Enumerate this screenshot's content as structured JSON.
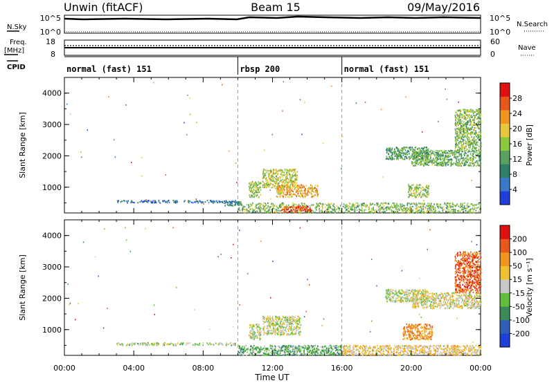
{
  "header": {
    "title_left": "Unwin (fitACF)",
    "title_center": "Beam 15",
    "title_right": "09/May/2016"
  },
  "nsky": {
    "label": "N.Sky",
    "tick_top": "10^5",
    "tick_bottom": "10^0",
    "right_label": "N.Search",
    "right_tick_top": "10^5",
    "right_tick_bottom": "10^0"
  },
  "freq": {
    "label_top": "Freq.",
    "label_bottom": "[MHz]",
    "tick_top": "18",
    "tick_bottom": "8",
    "right_label": "Nave",
    "right_tick_top": "60",
    "right_tick_bottom": "0"
  },
  "cpid": {
    "label": "CPID",
    "segments": [
      {
        "label": "normal (fast) 151",
        "start_hour": 0
      },
      {
        "label": "rbsp 200",
        "start_hour": 10
      },
      {
        "label": "normal (fast) 151",
        "start_hour": 16
      }
    ]
  },
  "colors": {
    "power_scale": [
      "#1f3fd8",
      "#3a78c8",
      "#2f7f6a",
      "#5aa060",
      "#8cc63e",
      "#e8c83a",
      "#f0961e",
      "#e8581a",
      "#e01010"
    ],
    "velocity_scale": [
      "#1f3fd8",
      "#2f5fb8",
      "#3a8a5a",
      "#5fbf3a",
      "#c8c8c8",
      "#f0c030",
      "#f0961e",
      "#e8581a",
      "#e01010"
    ],
    "cpid_change_line": "#888888"
  },
  "chart_data": [
    {
      "type": "heatmap",
      "panel": "power",
      "ylabel": "Slant Range [km]",
      "xlabel": "",
      "x_ticks": [
        "00:00",
        "04:00",
        "08:00",
        "12:00",
        "16:00",
        "20:00",
        "00:00"
      ],
      "x_range_hours": [
        0,
        24
      ],
      "ylim": [
        180,
        4500
      ],
      "y_ticks": [
        1000,
        2000,
        3000,
        4000
      ],
      "colorbar": {
        "label": "Power [dB]",
        "range": [
          0,
          32
        ],
        "ticks": [
          4,
          8,
          12,
          16,
          20,
          24,
          28
        ]
      },
      "echo_regions": [
        {
          "t0": 3.0,
          "t1": 10.0,
          "r0": 520,
          "r1": 600,
          "level": 0.15
        },
        {
          "t0": 9.2,
          "t1": 10.2,
          "r0": 430,
          "r1": 560,
          "level": 0.25
        },
        {
          "t0": 10.0,
          "t1": 24.0,
          "r0": 200,
          "r1": 520,
          "level": 0.45
        },
        {
          "t0": 12.5,
          "t1": 14.2,
          "r0": 220,
          "r1": 420,
          "level": 0.9
        },
        {
          "t0": 10.6,
          "t1": 11.3,
          "r0": 700,
          "r1": 1200,
          "level": 0.5
        },
        {
          "t0": 11.4,
          "t1": 13.4,
          "r0": 1000,
          "r1": 1600,
          "level": 0.55
        },
        {
          "t0": 12.2,
          "t1": 14.6,
          "r0": 700,
          "r1": 1100,
          "level": 0.7
        },
        {
          "t0": 18.5,
          "t1": 21.0,
          "r0": 1900,
          "r1": 2300,
          "level": 0.35
        },
        {
          "t0": 20.0,
          "t1": 24.0,
          "r0": 1700,
          "r1": 2200,
          "level": 0.4
        },
        {
          "t0": 19.8,
          "t1": 21.0,
          "r0": 700,
          "r1": 1100,
          "level": 0.5
        },
        {
          "t0": 22.5,
          "t1": 24.0,
          "r0": 2200,
          "r1": 3500,
          "level": 0.45
        }
      ]
    },
    {
      "type": "heatmap",
      "panel": "velocity",
      "ylabel": "Slant Range [km]",
      "xlabel": "Time UT",
      "x_ticks": [
        "00:00",
        "04:00",
        "08:00",
        "12:00",
        "16:00",
        "20:00",
        "00:00"
      ],
      "x_range_hours": [
        0,
        24
      ],
      "ylim": [
        180,
        4500
      ],
      "y_ticks": [
        1000,
        2000,
        3000,
        4000
      ],
      "colorbar": {
        "label": "Velocity [m s⁻¹]",
        "range": [
          -300,
          300
        ],
        "tick_labels": [
          "200",
          "100",
          "50",
          "15",
          "-15",
          "-50",
          "-100",
          "-200"
        ]
      },
      "echo_regions": [
        {
          "t0": 3.0,
          "t1": 10.0,
          "r0": 520,
          "r1": 600,
          "level": 0.45
        },
        {
          "t0": 10.0,
          "t1": 16.0,
          "r0": 200,
          "r1": 520,
          "level": 0.35
        },
        {
          "t0": 16.0,
          "t1": 24.0,
          "r0": 200,
          "r1": 520,
          "level": 0.6
        },
        {
          "t0": 10.6,
          "t1": 11.3,
          "r0": 700,
          "r1": 1200,
          "level": 0.5
        },
        {
          "t0": 11.4,
          "t1": 13.6,
          "r0": 850,
          "r1": 1450,
          "level": 0.5
        },
        {
          "t0": 18.5,
          "t1": 21.0,
          "r0": 1900,
          "r1": 2300,
          "level": 0.5
        },
        {
          "t0": 20.0,
          "t1": 24.0,
          "r0": 1700,
          "r1": 2200,
          "level": 0.55
        },
        {
          "t0": 19.5,
          "t1": 21.2,
          "r0": 700,
          "r1": 1200,
          "level": 0.75
        },
        {
          "t0": 22.5,
          "t1": 24.0,
          "r0": 2200,
          "r1": 3500,
          "level": 0.88
        }
      ]
    }
  ]
}
